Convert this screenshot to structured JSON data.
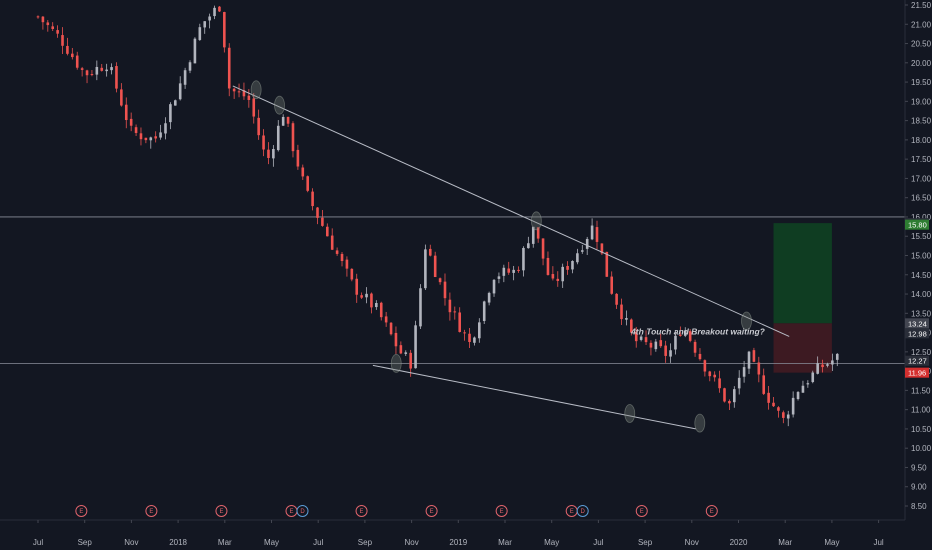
{
  "chart_data": {
    "type": "candlestick",
    "ylim": [
      8.3,
      21.7
    ],
    "y_ticks": [
      "8.50",
      "9.00",
      "9.50",
      "10.00",
      "10.50",
      "11.00",
      "11.50",
      "12.00",
      "12.50",
      "13.00",
      "13.50",
      "14.00",
      "14.50",
      "15.00",
      "15.50",
      "16.00",
      "16.50",
      "17.00",
      "17.50",
      "18.00",
      "18.50",
      "19.00",
      "19.50",
      "20.00",
      "20.50",
      "21.00",
      "21.50"
    ],
    "x_ticks": [
      "Jul",
      "Sep",
      "Nov",
      "2018",
      "Mar",
      "May",
      "Jul",
      "Sep",
      "Nov",
      "2019",
      "Mar",
      "May",
      "Jul",
      "Sep",
      "Nov",
      "2020",
      "Mar",
      "May",
      "Jul"
    ],
    "horizontal_lines": [
      16.0,
      12.2
    ],
    "trendlines": [
      {
        "from": [
          "2018-03",
          19.4
        ],
        "to": [
          "2020-03",
          12.9
        ]
      },
      {
        "from": [
          "2018-09",
          12.15
        ],
        "to": [
          "2019-11",
          10.5
        ]
      }
    ],
    "touch_points": [
      {
        "x": "2018-04",
        "y": 19.3
      },
      {
        "x": "2018-05",
        "y": 18.9
      },
      {
        "x": "2019-04",
        "y": 15.9
      },
      {
        "x": "2018-10",
        "y": 12.2
      },
      {
        "x": "2019-08",
        "y": 10.9
      },
      {
        "x": "2019-11",
        "y": 10.65
      },
      {
        "x": "2020-01",
        "y": 13.3
      }
    ],
    "position": {
      "entry": 13.24,
      "target": 15.84,
      "stop": 11.96
    },
    "price_tags": [
      {
        "label": "15.84",
        "value": 15.84,
        "color": "#2a2e39"
      },
      {
        "label": "15.80",
        "value": 15.8,
        "color": "#2e7d32"
      },
      {
        "label": "13.24",
        "value": 13.24,
        "color": "#434651"
      },
      {
        "label": "12.98",
        "value": 12.98,
        "color": "#2a2e39"
      },
      {
        "label": "12.27",
        "value": 12.27,
        "color": "#2a2e39"
      },
      {
        "label": "11.96",
        "value": 11.96,
        "color": "#d32f2f"
      }
    ],
    "events": [
      {
        "label": "E",
        "x": "2017-08"
      },
      {
        "label": "E",
        "x": "2017-11"
      },
      {
        "label": "E",
        "x": "2018-02"
      },
      {
        "label": "E",
        "x": "2018-05"
      },
      {
        "label": "D",
        "x": "2018-05"
      },
      {
        "label": "E",
        "x": "2018-08"
      },
      {
        "label": "E",
        "x": "2018-11"
      },
      {
        "label": "E",
        "x": "2019-02"
      },
      {
        "label": "E",
        "x": "2019-05"
      },
      {
        "label": "D",
        "x": "2019-05"
      },
      {
        "label": "E",
        "x": "2019-08"
      },
      {
        "label": "E",
        "x": "2019-11"
      }
    ],
    "annotation": "4th Touch and Breakout waiting?",
    "colors": {
      "background": "#131722",
      "up": "#b2b5be",
      "down": "#ef5350",
      "trendline": "#b8bcc6",
      "target_zone": "#0f3d22",
      "stop_zone": "#3d1a22"
    }
  }
}
